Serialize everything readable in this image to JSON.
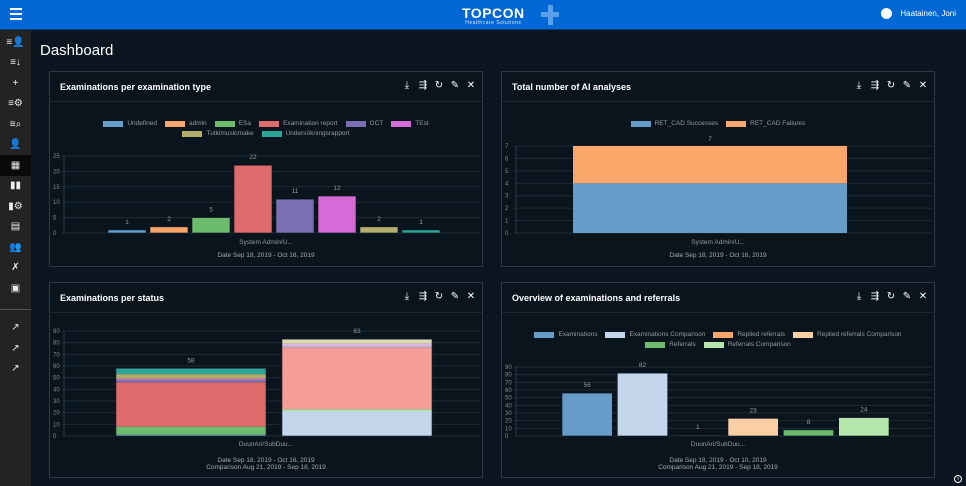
{
  "header": {
    "brand": "TOPCON",
    "brand_sub": "Healthcare Solutions",
    "user": "Haatainen, Joni"
  },
  "page_title": "Dashboard",
  "sidebar": {
    "icons": [
      "assign-user-icon",
      "download-list-icon",
      "add-icon",
      "list-settings-icon",
      "list-search-icon",
      "user-search-icon",
      "dashboard-icon",
      "bar-chart-icon",
      "chart-settings-icon",
      "report-settings-icon",
      "users-group-icon",
      "tools-icon",
      "monitor-chart-icon"
    ],
    "links": [
      "external-link-icon",
      "external-link-icon",
      "external-link-icon"
    ]
  },
  "tools": [
    "download-icon",
    "export-data-icon",
    "refresh-icon",
    "edit-icon",
    "close-icon"
  ],
  "panels": [
    {
      "title": "Examinations per examination type",
      "category": "System Admin/U...",
      "caption1": "Date Sep 18, 2019 - Oct 16, 2019",
      "caption2": ""
    },
    {
      "title": "Total number of AI analyses",
      "category": "System Admin/U...",
      "caption1": "Date Sep 18, 2019 - Oct 16, 2019",
      "caption2": ""
    },
    {
      "title": "Examinations per status",
      "category": "DuunAri/SubDuu...",
      "caption1": "Date Sep 18, 2019 - Oct 16, 2019",
      "caption2": "Comparison Aug 21, 2019 - Sep 18, 2019"
    },
    {
      "title": "Overview of examinations and referrals",
      "category": "DuunAri/SubDuu...",
      "caption1": "Date Sep 18, 2019 - Oct 10, 2019",
      "caption2": "Comparison Aug 21, 2019 - Sep 18, 2019"
    }
  ],
  "chart_data": [
    {
      "type": "bar",
      "title": "Examinations per examination type",
      "categories": [
        "System Admin/U..."
      ],
      "ylim": [
        0,
        25
      ],
      "yticks": [
        0,
        5,
        10,
        15,
        20,
        25
      ],
      "series": [
        {
          "name": "Undefined",
          "values": [
            1
          ],
          "color": "#65a0cb"
        },
        {
          "name": "admin",
          "values": [
            2
          ],
          "color": "#f9a66a"
        },
        {
          "name": "ESa",
          "values": [
            5
          ],
          "color": "#6dbb6d"
        },
        {
          "name": "Examination report",
          "values": [
            22
          ],
          "color": "#e06b6c"
        },
        {
          "name": "OCT",
          "values": [
            11
          ],
          "color": "#7b70b3"
        },
        {
          "name": "TEst",
          "values": [
            12
          ],
          "color": "#d66ad6"
        },
        {
          "name": "Tutkimuslomake",
          "values": [
            2
          ],
          "color": "#b3ad6e"
        },
        {
          "name": "Undersökningsrapport",
          "values": [
            1
          ],
          "color": "#2ba596"
        }
      ]
    },
    {
      "type": "bar",
      "stacked": true,
      "title": "Total number of AI analyses",
      "categories": [
        "System Admin/U..."
      ],
      "ylim": [
        0,
        7
      ],
      "yticks": [
        0,
        1,
        2,
        3,
        4,
        5,
        6,
        7
      ],
      "total_label": "7",
      "series": [
        {
          "name": "RET_CAD Successes",
          "values": [
            4
          ],
          "color": "#659dc8"
        },
        {
          "name": "RET_CAD Failures",
          "values": [
            3
          ],
          "color": "#f9a66a"
        }
      ]
    },
    {
      "type": "bar",
      "stacked": true,
      "title": "Examinations per status",
      "categories": [
        "DuunAri/SubDuu..."
      ],
      "ylim": [
        0,
        90
      ],
      "yticks": [
        0,
        10,
        20,
        30,
        40,
        50,
        60,
        70,
        80,
        90
      ],
      "stacks": [
        {
          "total_label": "58",
          "segments": [
            {
              "value": 1,
              "color": "#65a0cb"
            },
            {
              "value": 7,
              "color": "#6dbb6d"
            },
            {
              "value": 38,
              "color": "#e06b6c"
            },
            {
              "value": 2,
              "color": "#7b70b3"
            },
            {
              "value": 1,
              "color": "#d66ad6"
            },
            {
              "value": 4,
              "color": "#b3ad6e"
            },
            {
              "value": 5,
              "color": "#2ba596"
            }
          ]
        },
        {
          "total_label": "83",
          "segments": [
            {
              "value": 21,
              "color": "#c5d6ec"
            },
            {
              "value": 2,
              "color": "#b5e0a8"
            },
            {
              "value": 53,
              "color": "#f59e98"
            },
            {
              "value": 2,
              "color": "#c4b8da"
            },
            {
              "value": 1,
              "color": "#e8b6e6"
            },
            {
              "value": 4,
              "color": "#dcdab6"
            }
          ]
        }
      ]
    },
    {
      "type": "bar",
      "title": "Overview of examinations and referrals",
      "categories": [
        "DuunAri/SubDuu..."
      ],
      "ylim": [
        0,
        90
      ],
      "yticks": [
        0,
        10,
        20,
        30,
        40,
        50,
        60,
        70,
        80,
        90
      ],
      "series": [
        {
          "name": "Examinations",
          "values": [
            56
          ],
          "color": "#659dc8"
        },
        {
          "name": "Examinations Comparison",
          "values": [
            82
          ],
          "color": "#c5d6ec"
        },
        {
          "name": "Replied referrals",
          "values": [
            1
          ],
          "color": "#f9a66a"
        },
        {
          "name": "Replied referrals Comparison",
          "values": [
            23
          ],
          "color": "#f9cfa3"
        },
        {
          "name": "Referrals",
          "values": [
            8
          ],
          "color": "#6dbb6d"
        },
        {
          "name": "Referrals Comparison",
          "values": [
            24
          ],
          "color": "#b5e6ab"
        }
      ]
    }
  ]
}
